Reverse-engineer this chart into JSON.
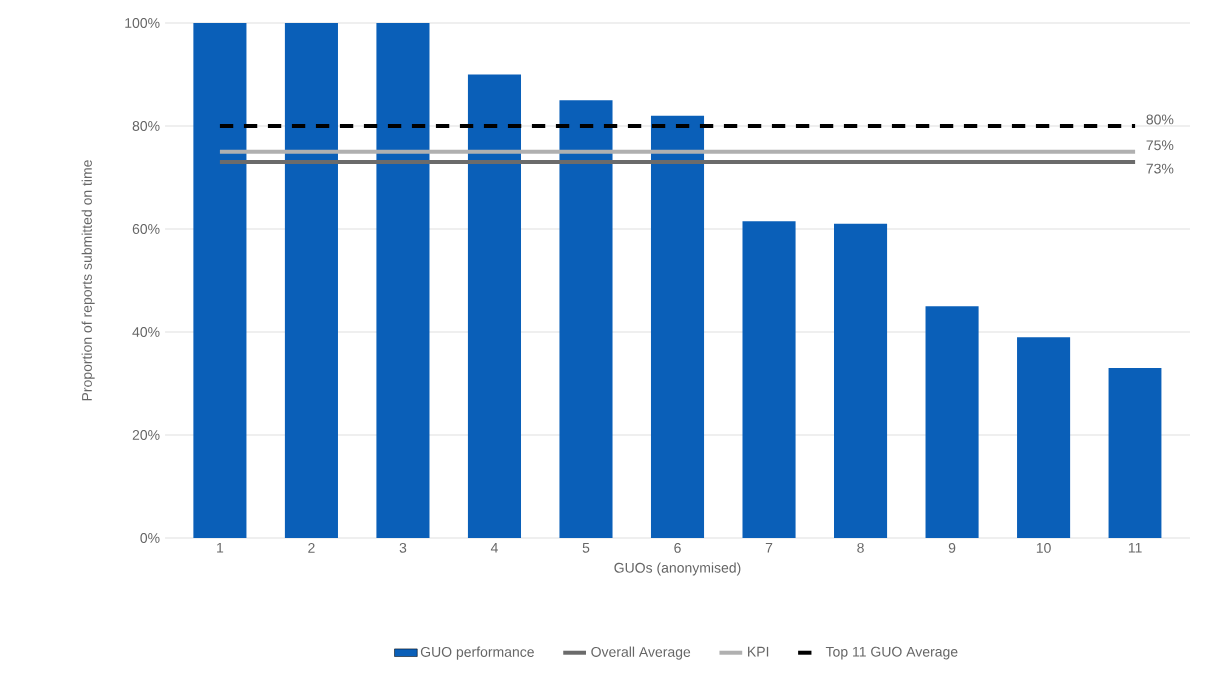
{
  "chart_data": {
    "type": "bar",
    "xlabel": "GUOs (anonymised)",
    "ylabel": "Proportion of reports submitted on time",
    "categories": [
      "1",
      "2",
      "3",
      "4",
      "5",
      "6",
      "7",
      "8",
      "9",
      "10",
      "11"
    ],
    "series": [
      {
        "name": "GUO performance",
        "color": "#0a5fb8",
        "values": [
          100,
          100,
          100,
          90,
          85,
          82,
          61.5,
          61,
          45,
          39,
          33
        ]
      },
      {
        "name": "Overall Average",
        "type": "line",
        "color": "#6b6b6b",
        "line_style": "solid",
        "values": [
          73,
          73,
          73,
          73,
          73,
          73,
          73,
          73,
          73,
          73,
          73
        ],
        "value_labels": [
          null,
          null,
          null,
          null,
          null,
          null,
          null,
          null,
          null,
          null,
          "73%"
        ]
      },
      {
        "name": "KPI",
        "type": "line",
        "color": "#b0b0b0",
        "line_style": "solid",
        "values": [
          75,
          75,
          75,
          75,
          75,
          75,
          75,
          75,
          75,
          75,
          75
        ],
        "value_labels": [
          null,
          null,
          null,
          null,
          null,
          null,
          null,
          null,
          null,
          null,
          "75%"
        ]
      },
      {
        "name": "Top 11 GUO Average",
        "type": "line",
        "color": "#000000",
        "line_style": "dashed",
        "values": [
          80,
          80,
          80,
          80,
          80,
          80,
          80,
          80,
          80,
          80,
          80
        ],
        "value_labels": [
          null,
          null,
          null,
          null,
          null,
          null,
          null,
          null,
          null,
          null,
          "80%"
        ]
      }
    ],
    "ylim": [
      0,
      100
    ],
    "yticks": [
      {
        "value": 0,
        "label": "0%"
      },
      {
        "value": 20,
        "label": "20%"
      },
      {
        "value": 40,
        "label": "40%"
      },
      {
        "value": 60,
        "label": "60%"
      },
      {
        "value": 80,
        "label": "80%"
      },
      {
        "value": 100,
        "label": "100%"
      }
    ],
    "grid": "y",
    "legend": "bottom"
  }
}
